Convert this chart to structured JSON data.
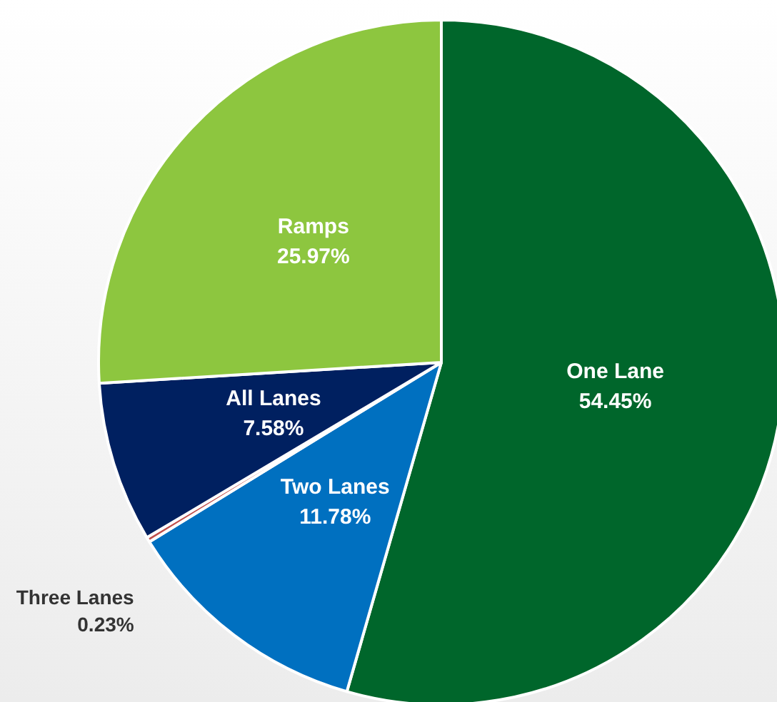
{
  "chart_data": {
    "type": "pie",
    "categories": [
      "One Lane",
      "Two Lanes",
      "Three Lanes",
      "All Lanes",
      "Ramps"
    ],
    "values": [
      54.45,
      11.78,
      0.23,
      7.58,
      25.97
    ],
    "colors": [
      "#00662b",
      "#0070c0",
      "#c0504d",
      "#002060",
      "#8dc63f"
    ],
    "value_labels": [
      "54.45%",
      "11.78%",
      "0.23%",
      "7.58%",
      "25.97%"
    ]
  }
}
